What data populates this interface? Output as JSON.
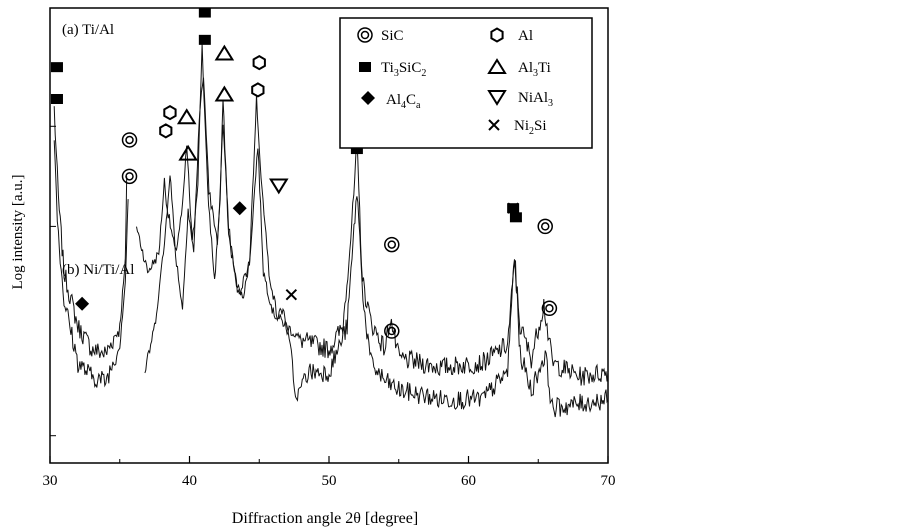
{
  "chart_data": {
    "type": "line",
    "xlabel": "Diffraction angle 2θ [degree]",
    "ylabel": "Log intensity [a.u.]",
    "xlim": [
      30,
      70
    ],
    "x_ticks": [
      "30",
      "40",
      "50",
      "60",
      "70"
    ],
    "y_scale": "log",
    "y_ticks_labeled": false,
    "grid": false,
    "legend_position": "top-right",
    "legend": [
      {
        "symbol": "double-circle",
        "label_main": "SiC",
        "label_sub": ""
      },
      {
        "symbol": "hexagon",
        "label_main": "Al",
        "label_sub": ""
      },
      {
        "symbol": "square",
        "label_main": "Ti",
        "label_sub": "3",
        "label_main2": "SiC",
        "label_sub2": "2"
      },
      {
        "symbol": "triangle-up",
        "label_main": "Al",
        "label_sub": "3",
        "label_main2": "Ti",
        "label_sub2": ""
      },
      {
        "symbol": "diamond",
        "label_main": "Al",
        "label_sub": "4",
        "label_main2": "C",
        "label_sub2": "a"
      },
      {
        "symbol": "triangle-down",
        "label_main": "NiAl",
        "label_sub": "3",
        "label_main2": "",
        "label_sub2": ""
      },
      {
        "symbol": "cross",
        "label_main": "Ni",
        "label_sub": "2",
        "label_main2": "Si",
        "label_sub2": ""
      }
    ],
    "series": [
      {
        "name": "(a) Ti/Al",
        "level": 0.7,
        "segments": [
          [
            [
              30.3,
              0.78
            ],
            [
              30.6,
              0.58
            ],
            [
              31,
              0.42
            ],
            [
              32,
              0.3
            ],
            [
              33,
              0.25
            ],
            [
              34,
              0.24
            ],
            [
              35,
              0.3
            ],
            [
              35.4,
              0.44
            ],
            [
              35.5,
              0.63
            ]
          ],
          [
            [
              36.2,
              0.52
            ],
            [
              37,
              0.42
            ],
            [
              37.8,
              0.46
            ],
            [
              38.2,
              0.62
            ],
            [
              38.4,
              0.56
            ],
            [
              39,
              0.46
            ],
            [
              39.5,
              0.56
            ],
            [
              39.8,
              0.7
            ],
            [
              40.2,
              0.48
            ],
            [
              40.6,
              0.62
            ],
            [
              40.9,
              0.92
            ],
            [
              41.3,
              0.6
            ],
            [
              41.8,
              0.4
            ],
            [
              42.2,
              0.58
            ],
            [
              42.4,
              0.8
            ],
            [
              42.8,
              0.5
            ],
            [
              43.5,
              0.37
            ],
            [
              44.3,
              0.44
            ],
            [
              44.9,
              0.7
            ],
            [
              45.3,
              0.42
            ],
            [
              46,
              0.33
            ],
            [
              48,
              0.27
            ],
            [
              50,
              0.25
            ],
            [
              51,
              0.3
            ],
            [
              51.7,
              0.55
            ],
            [
              52,
              0.7
            ],
            [
              52.4,
              0.4
            ],
            [
              53,
              0.31
            ],
            [
              54,
              0.25
            ],
            [
              54.4,
              0.32
            ],
            [
              55,
              0.23
            ],
            [
              58,
              0.21
            ],
            [
              61,
              0.22
            ],
            [
              62.8,
              0.26
            ],
            [
              63.3,
              0.44
            ],
            [
              63.7,
              0.3
            ],
            [
              64.5,
              0.23
            ],
            [
              65.4,
              0.35
            ],
            [
              66,
              0.22
            ],
            [
              68,
              0.19
            ],
            [
              70,
              0.2
            ]
          ]
        ],
        "peaks": [
          {
            "x": 30.5,
            "y": 0.87,
            "phase": "square"
          },
          {
            "x": 35.7,
            "y": 0.71,
            "phase": "double-circle"
          },
          {
            "x": 38.3,
            "y": 0.73,
            "phase": "hexagon"
          },
          {
            "x": 39.8,
            "y": 0.76,
            "phase": "triangle-up"
          },
          {
            "x": 41.1,
            "y": 0.99,
            "phase": "square"
          },
          {
            "x": 42.5,
            "y": 0.9,
            "phase": "triangle-up"
          },
          {
            "x": 44.9,
            "y": 0.82,
            "phase": "hexagon"
          },
          {
            "x": 52.0,
            "y": 0.78,
            "phase": "square"
          },
          {
            "x": 54.5,
            "y": 0.48,
            "phase": "double-circle"
          },
          {
            "x": 63.2,
            "y": 0.56,
            "phase": "square"
          },
          {
            "x": 63.2,
            "y": 0.56,
            "phase": "cross"
          },
          {
            "x": 65.5,
            "y": 0.52,
            "phase": "double-circle"
          }
        ]
      },
      {
        "name": "(b) Ni/Ti/Al",
        "level": 0.23,
        "segments": [
          [
            [
              30.3,
              0.71
            ],
            [
              30.6,
              0.5
            ],
            [
              31,
              0.36
            ],
            [
              32,
              0.22
            ],
            [
              33,
              0.19
            ],
            [
              34,
              0.18
            ],
            [
              35,
              0.26
            ],
            [
              35.4,
              0.4
            ],
            [
              35.6,
              0.58
            ]
          ],
          [
            [
              36.8,
              0.2
            ],
            [
              37.5,
              0.3
            ],
            [
              38.2,
              0.48
            ],
            [
              38.6,
              0.64
            ],
            [
              39,
              0.46
            ],
            [
              39.5,
              0.34
            ],
            [
              39.9,
              0.56
            ],
            [
              40.3,
              0.46
            ],
            [
              40.7,
              0.76
            ],
            [
              41,
              0.85
            ],
            [
              41.4,
              0.6
            ],
            [
              42,
              0.48
            ],
            [
              42.4,
              0.74
            ],
            [
              42.8,
              0.52
            ],
            [
              43.3,
              0.4
            ],
            [
              43.8,
              0.36
            ],
            [
              44.3,
              0.44
            ],
            [
              44.8,
              0.8
            ],
            [
              45.2,
              0.6
            ],
            [
              45.7,
              0.42
            ],
            [
              46.3,
              0.32
            ],
            [
              46.7,
              0.34
            ],
            [
              47.3,
              0.24
            ],
            [
              47.6,
              0.14
            ],
            [
              48.5,
              0.2
            ],
            [
              50,
              0.2
            ],
            [
              51.3,
              0.3
            ],
            [
              52,
              0.6
            ],
            [
              52.5,
              0.34
            ],
            [
              53,
              0.22
            ],
            [
              54,
              0.18
            ],
            [
              55,
              0.16
            ],
            [
              58,
              0.14
            ],
            [
              61,
              0.14
            ],
            [
              62.8,
              0.2
            ],
            [
              63.3,
              0.46
            ],
            [
              63.7,
              0.24
            ],
            [
              64.5,
              0.16
            ],
            [
              65.5,
              0.24
            ],
            [
              66,
              0.12
            ],
            [
              68,
              0.13
            ],
            [
              70,
              0.14
            ]
          ]
        ],
        "peaks": [
          {
            "x": 30.5,
            "y": 0.8,
            "phase": "square"
          },
          {
            "x": 32.3,
            "y": 0.35,
            "phase": "diamond"
          },
          {
            "x": 35.7,
            "y": 0.63,
            "phase": "double-circle"
          },
          {
            "x": 38.6,
            "y": 0.77,
            "phase": "hexagon"
          },
          {
            "x": 39.9,
            "y": 0.68,
            "phase": "triangle-up"
          },
          {
            "x": 41.1,
            "y": 0.93,
            "phase": "square"
          },
          {
            "x": 42.5,
            "y": 0.81,
            "phase": "triangle-up"
          },
          {
            "x": 43.6,
            "y": 0.56,
            "phase": "diamond"
          },
          {
            "x": 45.0,
            "y": 0.88,
            "phase": "hexagon"
          },
          {
            "x": 46.4,
            "y": 0.61,
            "phase": "triangle-down"
          },
          {
            "x": 47.3,
            "y": 0.37,
            "phase": "cross"
          },
          {
            "x": 52.0,
            "y": 0.69,
            "phase": "square"
          },
          {
            "x": 54.5,
            "y": 0.29,
            "phase": "double-circle"
          },
          {
            "x": 63.4,
            "y": 0.54,
            "phase": "square"
          },
          {
            "x": 65.8,
            "y": 0.34,
            "phase": "double-circle"
          }
        ]
      }
    ]
  }
}
